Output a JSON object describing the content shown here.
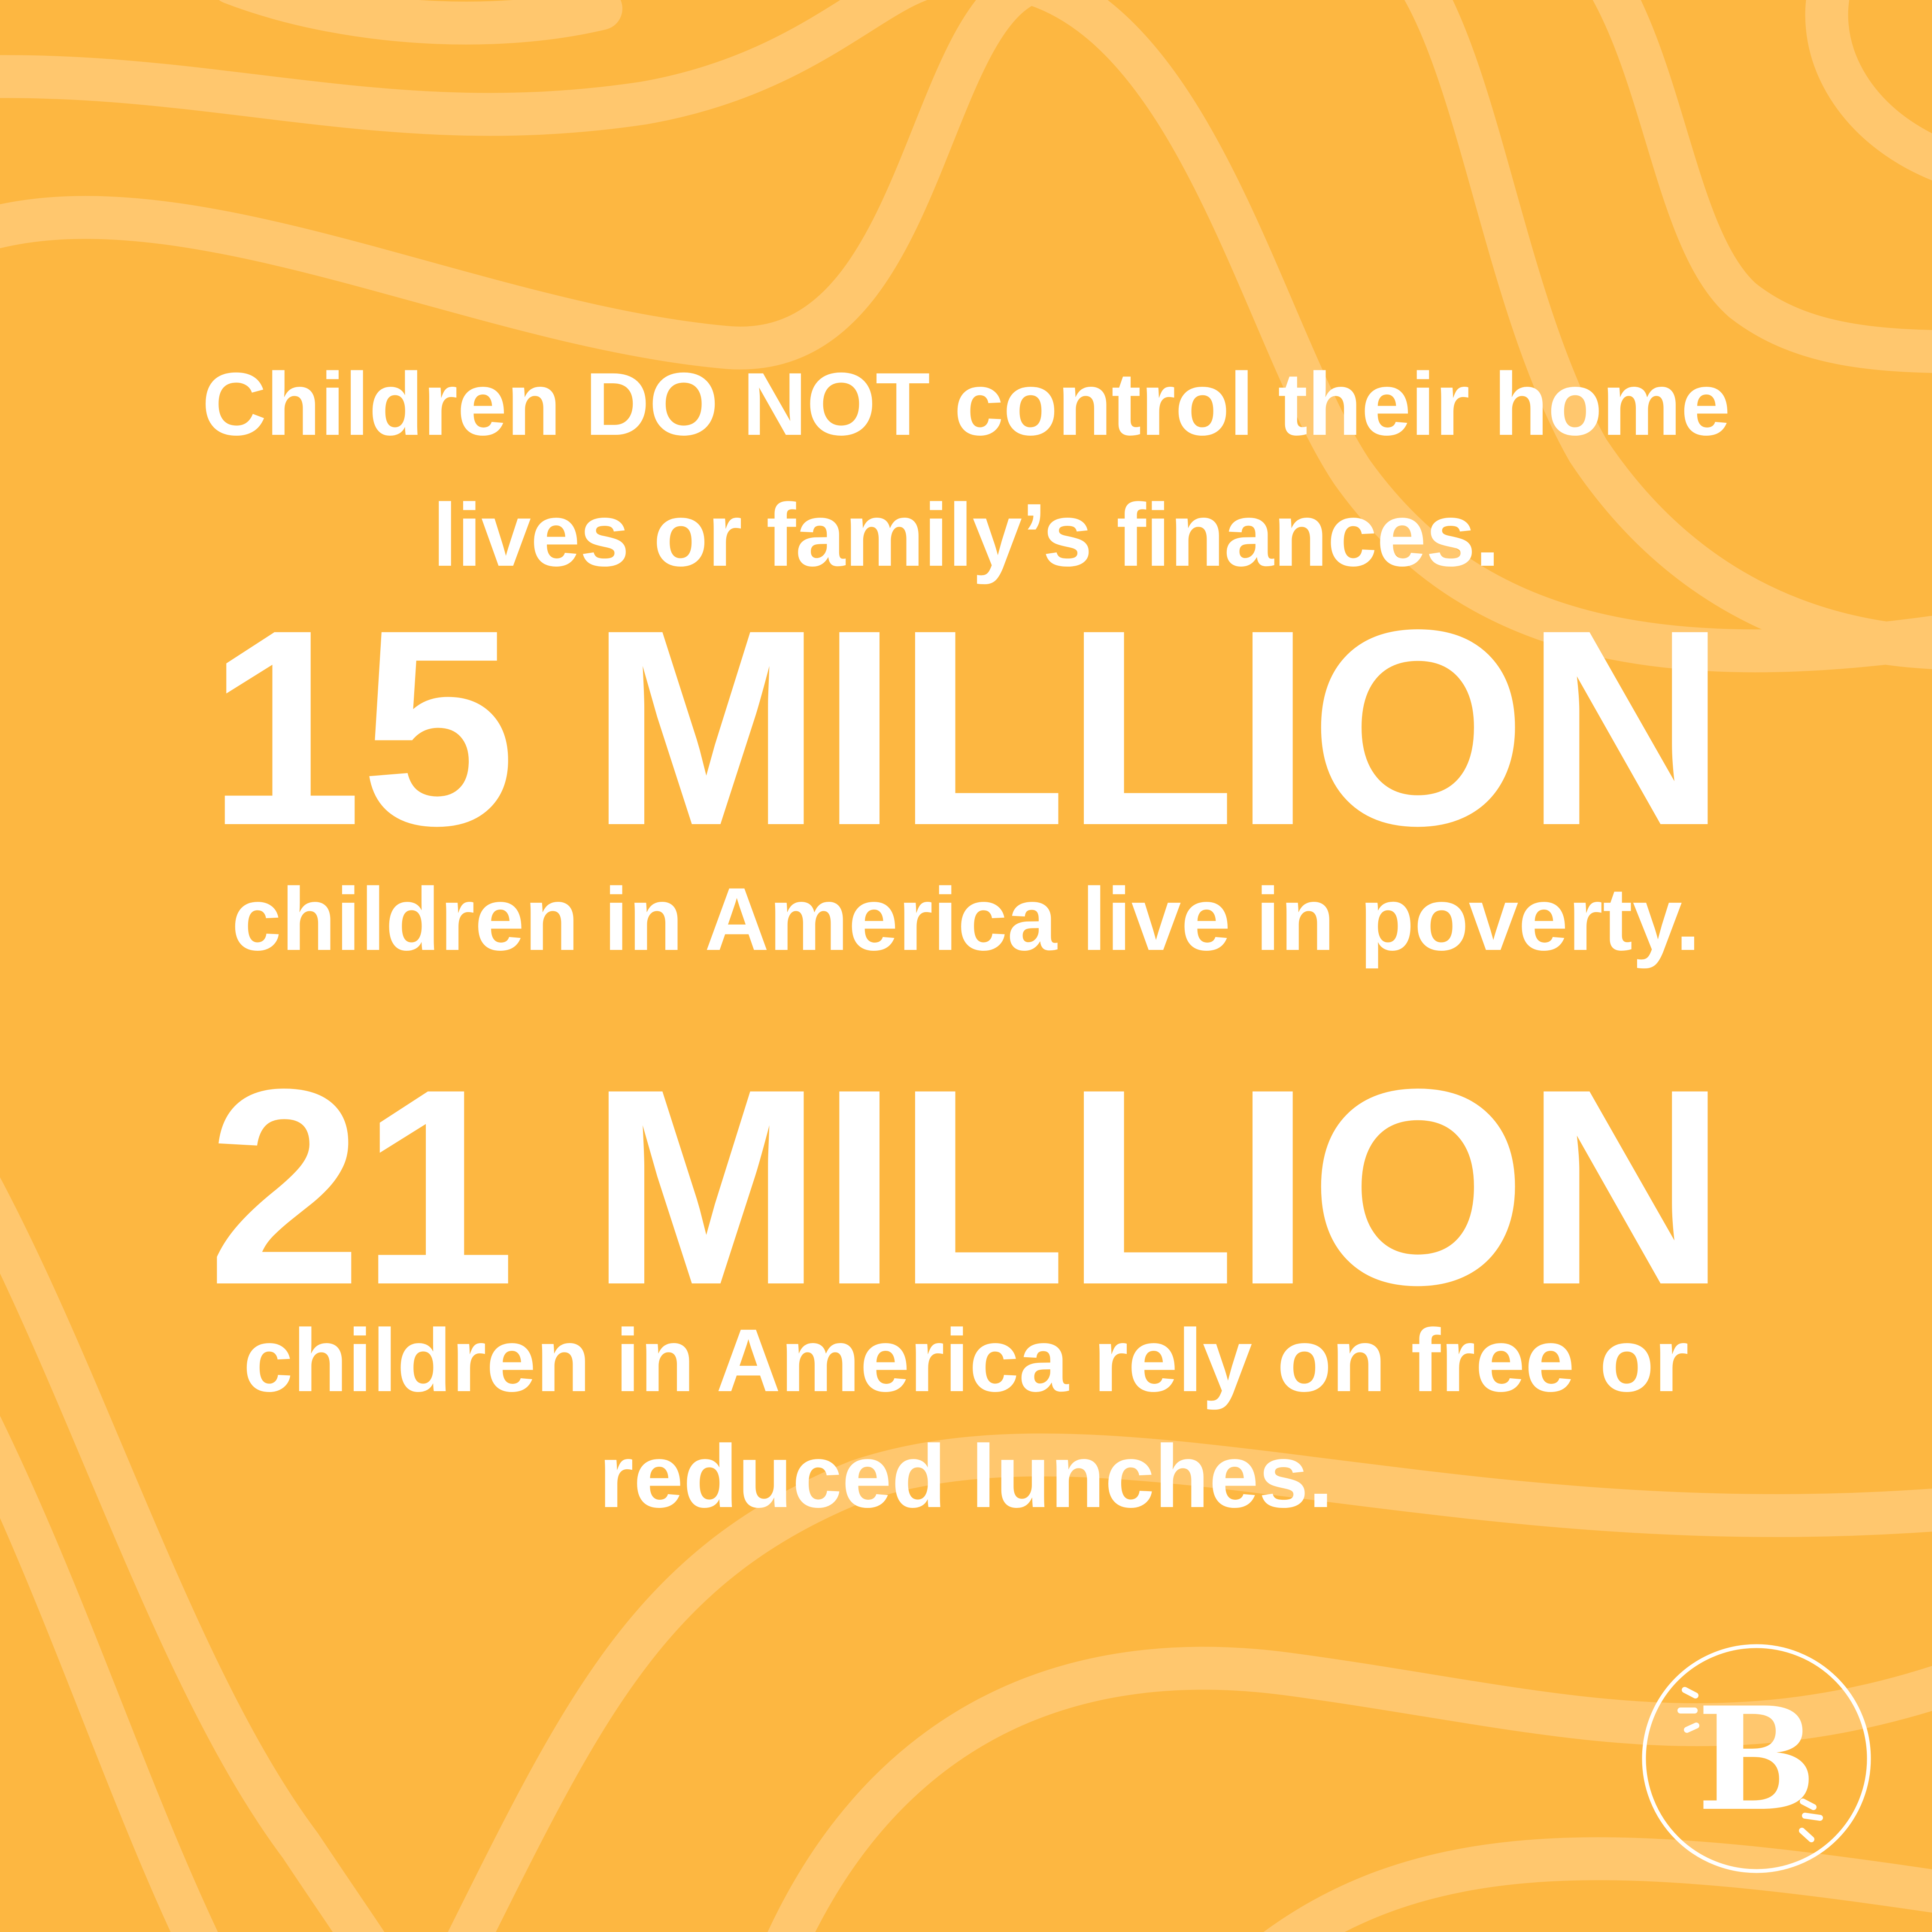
{
  "colors": {
    "background": "#FDB741",
    "wave": "#FFC76E",
    "text": "#FFFFFF"
  },
  "intro": {
    "line1": "Children DO NOT control their home",
    "line2": "lives or family’s finances."
  },
  "stat1": {
    "number": "15 MILLION",
    "caption": "children in America live in poverty."
  },
  "stat2": {
    "number": "21 MILLION",
    "caption_line1": "children in America rely on free or",
    "caption_line2": "reduced lunches."
  },
  "logo": {
    "letter": "B",
    "icon": "brand-b-circle-icon"
  }
}
